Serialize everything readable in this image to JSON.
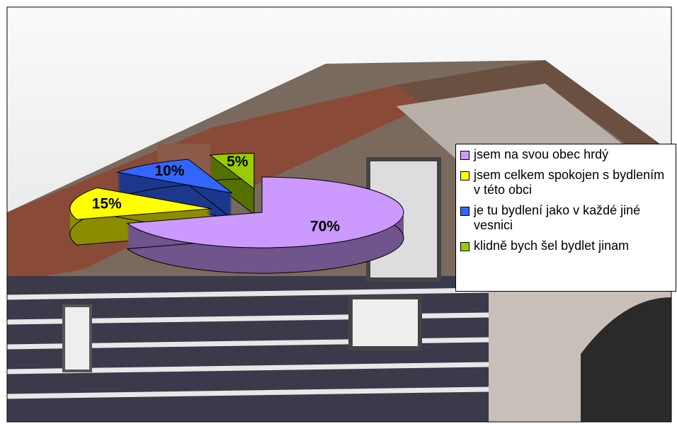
{
  "chart_data": {
    "type": "pie",
    "categories": [
      "jsem na svou obec hrdý",
      "jsem celkem spokojen s bydlením v této obci",
      "je tu bydlení jako v každé jiné vesnici",
      "klidně bych šel bydlet jinam"
    ],
    "values": [
      70,
      15,
      10,
      5
    ],
    "value_labels": [
      "70%",
      "15%",
      "10%",
      "5%"
    ],
    "colors": [
      "#cc99ff",
      "#ffff00",
      "#3366ff",
      "#99cc00"
    ],
    "legend": "right"
  }
}
